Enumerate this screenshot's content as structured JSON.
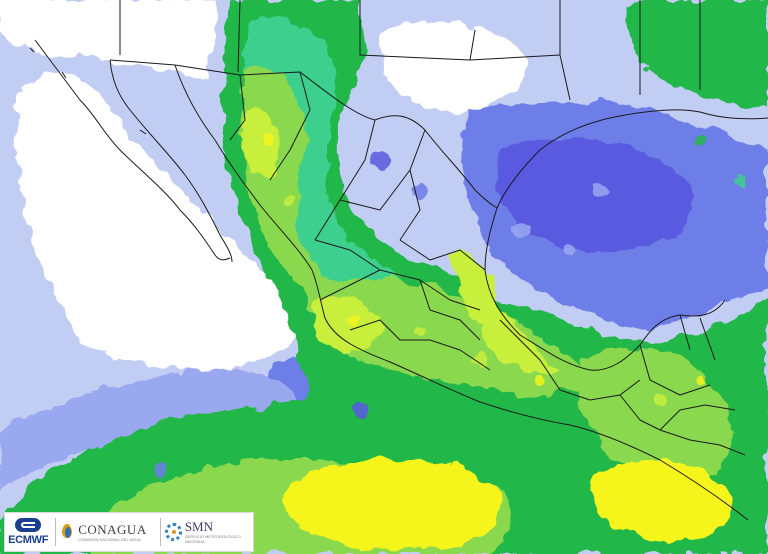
{
  "map": {
    "subject": "precipitation forecast map of Mexico and Central America",
    "palette": {
      "ocean_white": "#ffffff",
      "pale_blue": "#c2cdf4",
      "light_blue": "#9aa8f0",
      "blue": "#6e7ee8",
      "violet": "#5a5ae0",
      "cyan_green": "#3ecf8e",
      "green": "#22b74a",
      "light_green": "#8ad84e",
      "yellow_green": "#c8ef3a",
      "yellow": "#f5f51e",
      "border_line": "#1a1a1a"
    }
  },
  "logos": {
    "ecmwf": "ECMWF",
    "conagua": "CONAGUA",
    "conagua_sub": "COMISIÓN NACIONAL DEL AGUA",
    "smn": "SMN",
    "smn_sub": "SERVICIO METEOROLÓGICO NACIONAL"
  }
}
